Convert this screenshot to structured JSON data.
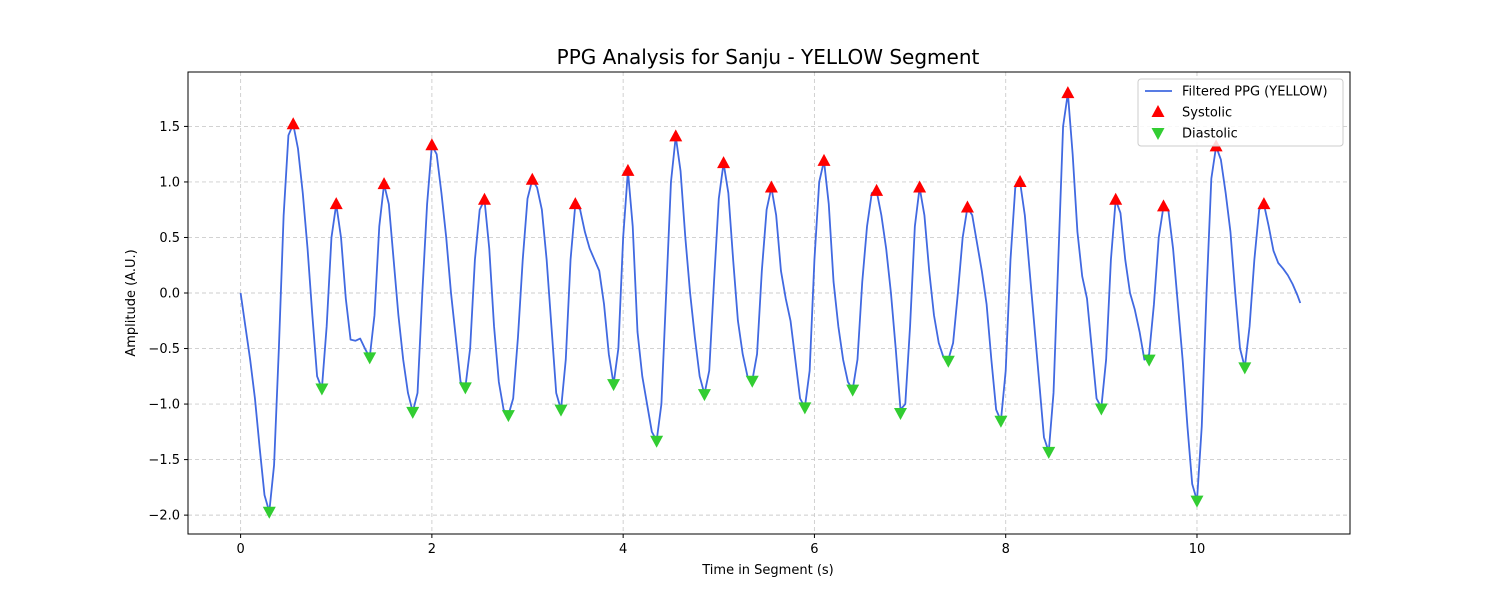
{
  "chart_data": {
    "type": "line",
    "title": "PPG Analysis for Sanju - YELLOW Segment",
    "xlabel": "Time in Segment (s)",
    "ylabel": "Amplitude (A.U.)",
    "xlim": [
      -0.55,
      11.6
    ],
    "ylim": [
      -2.17,
      1.99
    ],
    "xticks": [
      0,
      2,
      4,
      6,
      8,
      10
    ],
    "yticks": [
      -2.0,
      -1.5,
      -1.0,
      -0.5,
      0.0,
      0.5,
      1.0,
      1.5
    ],
    "xtick_labels": [
      "0",
      "2",
      "4",
      "6",
      "8",
      "10"
    ],
    "ytick_labels": [
      "−2.0",
      "−1.5",
      "−1.0",
      "−0.5",
      "0.0",
      "0.5",
      "1.0",
      "1.5"
    ],
    "grid": true,
    "legend_position": "top-right",
    "colors": {
      "line": "#4169e1",
      "systolic": "#ff0000",
      "diastolic": "#32cd32",
      "grid": "#cccccc"
    },
    "series": [
      {
        "name": "Filtered PPG (YELLOW)",
        "kind": "line",
        "points": [
          [
            0.0,
            0.0
          ],
          [
            0.05,
            -0.3
          ],
          [
            0.1,
            -0.6
          ],
          [
            0.15,
            -0.95
          ],
          [
            0.2,
            -1.4
          ],
          [
            0.25,
            -1.82
          ],
          [
            0.3,
            -1.97
          ],
          [
            0.35,
            -1.55
          ],
          [
            0.4,
            -0.5
          ],
          [
            0.45,
            0.7
          ],
          [
            0.5,
            1.42
          ],
          [
            0.55,
            1.52
          ],
          [
            0.6,
            1.3
          ],
          [
            0.65,
            0.9
          ],
          [
            0.7,
            0.4
          ],
          [
            0.75,
            -0.2
          ],
          [
            0.8,
            -0.75
          ],
          [
            0.85,
            -0.86
          ],
          [
            0.9,
            -0.3
          ],
          [
            0.95,
            0.5
          ],
          [
            1.0,
            0.8
          ],
          [
            1.05,
            0.5
          ],
          [
            1.1,
            -0.05
          ],
          [
            1.15,
            -0.42
          ],
          [
            1.2,
            -0.43
          ],
          [
            1.25,
            -0.41
          ],
          [
            1.3,
            -0.5
          ],
          [
            1.35,
            -0.58
          ],
          [
            1.4,
            -0.2
          ],
          [
            1.45,
            0.6
          ],
          [
            1.5,
            0.98
          ],
          [
            1.55,
            0.8
          ],
          [
            1.6,
            0.3
          ],
          [
            1.65,
            -0.2
          ],
          [
            1.7,
            -0.6
          ],
          [
            1.75,
            -0.9
          ],
          [
            1.8,
            -1.07
          ],
          [
            1.85,
            -0.9
          ],
          [
            1.9,
            0.0
          ],
          [
            1.95,
            0.8
          ],
          [
            2.0,
            1.33
          ],
          [
            2.05,
            1.25
          ],
          [
            2.1,
            0.9
          ],
          [
            2.15,
            0.5
          ],
          [
            2.2,
            0.0
          ],
          [
            2.25,
            -0.4
          ],
          [
            2.3,
            -0.8
          ],
          [
            2.35,
            -0.85
          ],
          [
            2.4,
            -0.5
          ],
          [
            2.45,
            0.3
          ],
          [
            2.5,
            0.75
          ],
          [
            2.55,
            0.84
          ],
          [
            2.6,
            0.4
          ],
          [
            2.65,
            -0.3
          ],
          [
            2.7,
            -0.8
          ],
          [
            2.75,
            -1.05
          ],
          [
            2.8,
            -1.1
          ],
          [
            2.85,
            -0.95
          ],
          [
            2.9,
            -0.4
          ],
          [
            2.95,
            0.3
          ],
          [
            3.0,
            0.85
          ],
          [
            3.05,
            1.02
          ],
          [
            3.1,
            0.95
          ],
          [
            3.15,
            0.75
          ],
          [
            3.2,
            0.3
          ],
          [
            3.25,
            -0.3
          ],
          [
            3.3,
            -0.9
          ],
          [
            3.35,
            -1.05
          ],
          [
            3.4,
            -0.6
          ],
          [
            3.45,
            0.3
          ],
          [
            3.5,
            0.8
          ],
          [
            3.55,
            0.75
          ],
          [
            3.6,
            0.55
          ],
          [
            3.65,
            0.4
          ],
          [
            3.7,
            0.3
          ],
          [
            3.75,
            0.2
          ],
          [
            3.8,
            -0.1
          ],
          [
            3.85,
            -0.55
          ],
          [
            3.9,
            -0.82
          ],
          [
            3.95,
            -0.5
          ],
          [
            4.0,
            0.5
          ],
          [
            4.05,
            1.1
          ],
          [
            4.1,
            0.6
          ],
          [
            4.15,
            -0.35
          ],
          [
            4.2,
            -0.75
          ],
          [
            4.25,
            -1.0
          ],
          [
            4.3,
            -1.25
          ],
          [
            4.35,
            -1.33
          ],
          [
            4.4,
            -1.0
          ],
          [
            4.45,
            0.0
          ],
          [
            4.5,
            1.0
          ],
          [
            4.55,
            1.41
          ],
          [
            4.6,
            1.1
          ],
          [
            4.65,
            0.5
          ],
          [
            4.7,
            0.0
          ],
          [
            4.75,
            -0.4
          ],
          [
            4.8,
            -0.75
          ],
          [
            4.85,
            -0.91
          ],
          [
            4.9,
            -0.7
          ],
          [
            4.95,
            0.1
          ],
          [
            5.0,
            0.85
          ],
          [
            5.05,
            1.17
          ],
          [
            5.1,
            0.9
          ],
          [
            5.15,
            0.3
          ],
          [
            5.2,
            -0.25
          ],
          [
            5.25,
            -0.55
          ],
          [
            5.3,
            -0.75
          ],
          [
            5.35,
            -0.79
          ],
          [
            5.4,
            -0.55
          ],
          [
            5.45,
            0.2
          ],
          [
            5.5,
            0.75
          ],
          [
            5.55,
            0.95
          ],
          [
            5.6,
            0.7
          ],
          [
            5.65,
            0.2
          ],
          [
            5.7,
            -0.05
          ],
          [
            5.75,
            -0.25
          ],
          [
            5.8,
            -0.6
          ],
          [
            5.85,
            -0.95
          ],
          [
            5.9,
            -1.03
          ],
          [
            5.95,
            -0.7
          ],
          [
            6.0,
            0.3
          ],
          [
            6.05,
            1.0
          ],
          [
            6.1,
            1.19
          ],
          [
            6.15,
            0.8
          ],
          [
            6.2,
            0.1
          ],
          [
            6.25,
            -0.3
          ],
          [
            6.3,
            -0.6
          ],
          [
            6.35,
            -0.8
          ],
          [
            6.4,
            -0.87
          ],
          [
            6.45,
            -0.6
          ],
          [
            6.5,
            0.1
          ],
          [
            6.55,
            0.6
          ],
          [
            6.6,
            0.9
          ],
          [
            6.65,
            0.92
          ],
          [
            6.7,
            0.7
          ],
          [
            6.75,
            0.4
          ],
          [
            6.8,
            0.0
          ],
          [
            6.85,
            -0.5
          ],
          [
            6.9,
            -1.05
          ],
          [
            6.95,
            -1.0
          ],
          [
            7.0,
            -0.3
          ],
          [
            7.05,
            0.6
          ],
          [
            7.1,
            0.95
          ],
          [
            7.15,
            0.7
          ],
          [
            7.2,
            0.2
          ],
          [
            7.25,
            -0.2
          ],
          [
            7.3,
            -0.45
          ],
          [
            7.35,
            -0.58
          ],
          [
            7.4,
            -0.6
          ],
          [
            7.45,
            -0.45
          ],
          [
            7.5,
            0.0
          ],
          [
            7.55,
            0.5
          ],
          [
            7.6,
            0.77
          ],
          [
            7.65,
            0.7
          ],
          [
            7.7,
            0.45
          ],
          [
            7.75,
            0.2
          ],
          [
            7.8,
            -0.1
          ],
          [
            7.85,
            -0.6
          ],
          [
            7.9,
            -1.05
          ],
          [
            7.95,
            -1.15
          ],
          [
            8.0,
            -0.7
          ],
          [
            8.05,
            0.3
          ],
          [
            8.1,
            0.95
          ],
          [
            8.15,
            1.0
          ],
          [
            8.2,
            0.7
          ],
          [
            8.25,
            0.2
          ],
          [
            8.3,
            -0.3
          ],
          [
            8.35,
            -0.8
          ],
          [
            8.4,
            -1.3
          ],
          [
            8.45,
            -1.43
          ],
          [
            8.5,
            -0.9
          ],
          [
            8.55,
            0.3
          ],
          [
            8.6,
            1.5
          ],
          [
            8.65,
            1.8
          ],
          [
            8.7,
            1.25
          ],
          [
            8.75,
            0.55
          ],
          [
            8.8,
            0.15
          ],
          [
            8.85,
            -0.05
          ],
          [
            8.9,
            -0.5
          ],
          [
            8.95,
            -0.95
          ],
          [
            9.0,
            -1.03
          ],
          [
            9.05,
            -0.6
          ],
          [
            9.1,
            0.3
          ],
          [
            9.15,
            0.84
          ],
          [
            9.2,
            0.72
          ],
          [
            9.25,
            0.3
          ],
          [
            9.3,
            0.0
          ],
          [
            9.35,
            -0.15
          ],
          [
            9.4,
            -0.35
          ],
          [
            9.45,
            -0.6
          ],
          [
            9.5,
            -0.55
          ],
          [
            9.55,
            -0.1
          ],
          [
            9.6,
            0.5
          ],
          [
            9.65,
            0.78
          ],
          [
            9.7,
            0.75
          ],
          [
            9.75,
            0.4
          ],
          [
            9.8,
            -0.1
          ],
          [
            9.85,
            -0.6
          ],
          [
            9.9,
            -1.2
          ],
          [
            9.95,
            -1.72
          ],
          [
            10.0,
            -1.87
          ],
          [
            10.05,
            -1.2
          ],
          [
            10.1,
            0.0
          ],
          [
            10.15,
            1.03
          ],
          [
            10.2,
            1.32
          ],
          [
            10.25,
            1.2
          ],
          [
            10.3,
            0.9
          ],
          [
            10.35,
            0.55
          ],
          [
            10.4,
            0.0
          ],
          [
            10.45,
            -0.5
          ],
          [
            10.5,
            -0.67
          ],
          [
            10.55,
            -0.3
          ],
          [
            10.6,
            0.3
          ],
          [
            10.65,
            0.75
          ],
          [
            10.7,
            0.8
          ],
          [
            10.75,
            0.6
          ],
          [
            10.8,
            0.38
          ],
          [
            10.85,
            0.27
          ],
          [
            10.9,
            0.22
          ],
          [
            10.95,
            0.16
          ],
          [
            11.0,
            0.08
          ],
          [
            11.05,
            -0.02
          ],
          [
            11.08,
            -0.09
          ]
        ]
      },
      {
        "name": "Systolic",
        "kind": "marker-up",
        "points": [
          [
            0.55,
            1.52
          ],
          [
            1.0,
            0.8
          ],
          [
            1.5,
            0.98
          ],
          [
            2.0,
            1.33
          ],
          [
            2.55,
            0.84
          ],
          [
            3.05,
            1.02
          ],
          [
            3.5,
            0.8
          ],
          [
            4.05,
            1.1
          ],
          [
            4.55,
            1.41
          ],
          [
            5.05,
            1.17
          ],
          [
            5.55,
            0.95
          ],
          [
            6.1,
            1.19
          ],
          [
            6.65,
            0.92
          ],
          [
            7.1,
            0.95
          ],
          [
            7.6,
            0.77
          ],
          [
            8.15,
            1.0
          ],
          [
            8.65,
            1.8
          ],
          [
            9.15,
            0.84
          ],
          [
            9.65,
            0.78
          ],
          [
            10.2,
            1.32
          ],
          [
            10.7,
            0.8
          ]
        ]
      },
      {
        "name": "Diastolic",
        "kind": "marker-down",
        "points": [
          [
            0.3,
            -1.97
          ],
          [
            0.85,
            -0.86
          ],
          [
            1.35,
            -0.58
          ],
          [
            1.8,
            -1.07
          ],
          [
            2.35,
            -0.85
          ],
          [
            2.8,
            -1.1
          ],
          [
            3.35,
            -1.05
          ],
          [
            3.9,
            -0.82
          ],
          [
            4.35,
            -1.33
          ],
          [
            4.85,
            -0.91
          ],
          [
            5.35,
            -0.79
          ],
          [
            5.9,
            -1.03
          ],
          [
            6.4,
            -0.87
          ],
          [
            6.9,
            -1.08
          ],
          [
            7.4,
            -0.61
          ],
          [
            7.95,
            -1.15
          ],
          [
            8.45,
            -1.43
          ],
          [
            9.0,
            -1.04
          ],
          [
            9.5,
            -0.6
          ],
          [
            10.0,
            -1.87
          ],
          [
            10.5,
            -0.67
          ]
        ]
      }
    ]
  }
}
